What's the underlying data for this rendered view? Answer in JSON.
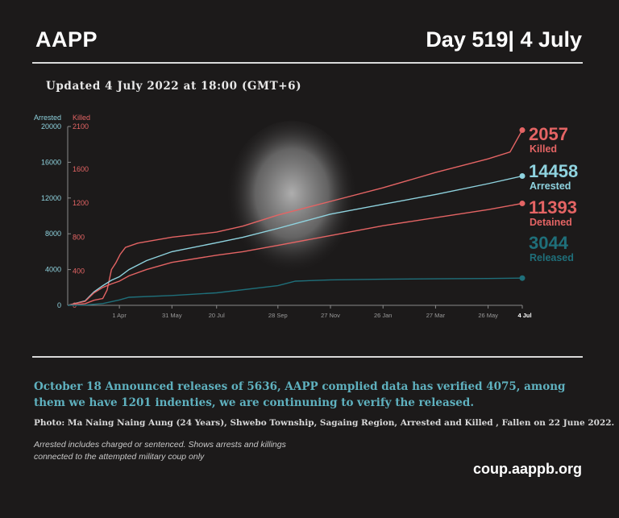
{
  "header": {
    "brand": "AAPP",
    "day": "Day 519| 4 July"
  },
  "updated": "Updated 4 July 2022 at 18:00 (GMT+6)",
  "note": "October 18 Announced releases of 5636, AAPP complied data has verified 4075, among them we have 1201 indenties, we are continuning to verify the released.",
  "photo_credit": "Photo:  Ma Naing Naing Aung (24 Years), Shwebo Township, Sagaing Region, Arrested and Killed , Fallen on 22 June 2022.",
  "footnote": [
    "Arrested includes charged or sentenced. Shows arrests and killings",
    "connected to the attempted military coup only"
  ],
  "site": "coup.aappb.org",
  "colors": {
    "arrested": "#8fd3df",
    "killed": "#e46464",
    "released": "#1f6f7a",
    "bg": "#1c1a1a",
    "axis": "#8a8a8a"
  },
  "chart_data": {
    "type": "line",
    "axis_left": {
      "label": "Arrested",
      "ticks": [
        0,
        4000,
        8000,
        12000,
        16000,
        20000
      ],
      "ylim": [
        0,
        20000
      ]
    },
    "axis_right": {
      "label": "Killed",
      "ticks": [
        0,
        400,
        800,
        1200,
        1600,
        2100
      ],
      "ylim": [
        0,
        2100
      ]
    },
    "x_ticks": [
      {
        "label": "1 Apr",
        "x": 59
      },
      {
        "label": "31 May",
        "x": 119
      },
      {
        "label": "20 Jul",
        "x": 170
      },
      {
        "label": "28 Sep",
        "x": 240
      },
      {
        "label": "27 Nov",
        "x": 300
      },
      {
        "label": "26 Jan",
        "x": 360
      },
      {
        "label": "27 Mar",
        "x": 420
      },
      {
        "label": "26 May",
        "x": 480
      },
      {
        "label": "4 Jul",
        "x": 519,
        "bold": true
      }
    ],
    "series": [
      {
        "name": "Killed",
        "value_label": "2057",
        "axis": "right",
        "color": "#e46464",
        "points": [
          [
            0,
            0
          ],
          [
            20,
            20
          ],
          [
            30,
            60
          ],
          [
            40,
            80
          ],
          [
            45,
            180
          ],
          [
            50,
            420
          ],
          [
            55,
            500
          ],
          [
            60,
            600
          ],
          [
            66,
            680
          ],
          [
            80,
            730
          ],
          [
            119,
            800
          ],
          [
            170,
            860
          ],
          [
            200,
            930
          ],
          [
            240,
            1060
          ],
          [
            300,
            1220
          ],
          [
            360,
            1380
          ],
          [
            420,
            1560
          ],
          [
            480,
            1720
          ],
          [
            505,
            1800
          ],
          [
            519,
            2057
          ]
        ]
      },
      {
        "name": "Arrested",
        "value_label": "14458",
        "axis": "left",
        "color": "#8fd3df",
        "points": [
          [
            0,
            0
          ],
          [
            20,
            500
          ],
          [
            30,
            1500
          ],
          [
            40,
            2200
          ],
          [
            50,
            2800
          ],
          [
            59,
            3200
          ],
          [
            70,
            4000
          ],
          [
            90,
            5000
          ],
          [
            119,
            6000
          ],
          [
            170,
            7000
          ],
          [
            200,
            7600
          ],
          [
            240,
            8600
          ],
          [
            300,
            10200
          ],
          [
            360,
            11300
          ],
          [
            420,
            12400
          ],
          [
            480,
            13600
          ],
          [
            519,
            14458
          ]
        ]
      },
      {
        "name": "Detained",
        "value_label": "11393",
        "axis": "left",
        "color": "#e46464",
        "points": [
          [
            0,
            0
          ],
          [
            20,
            450
          ],
          [
            30,
            1400
          ],
          [
            40,
            2000
          ],
          [
            50,
            2400
          ],
          [
            59,
            2700
          ],
          [
            70,
            3300
          ],
          [
            90,
            4000
          ],
          [
            119,
            4800
          ],
          [
            170,
            5600
          ],
          [
            200,
            6000
          ],
          [
            240,
            6700
          ],
          [
            300,
            7800
          ],
          [
            360,
            8900
          ],
          [
            420,
            9800
          ],
          [
            480,
            10700
          ],
          [
            519,
            11393
          ]
        ]
      },
      {
        "name": "Released",
        "value_label": "3044",
        "axis": "left",
        "color": "#1f6f7a",
        "points": [
          [
            0,
            0
          ],
          [
            20,
            40
          ],
          [
            40,
            200
          ],
          [
            59,
            600
          ],
          [
            70,
            900
          ],
          [
            119,
            1100
          ],
          [
            170,
            1400
          ],
          [
            240,
            2200
          ],
          [
            260,
            2700
          ],
          [
            300,
            2850
          ],
          [
            360,
            2920
          ],
          [
            420,
            2960
          ],
          [
            480,
            3000
          ],
          [
            519,
            3044
          ]
        ]
      }
    ],
    "xlim": [
      0,
      519
    ]
  }
}
